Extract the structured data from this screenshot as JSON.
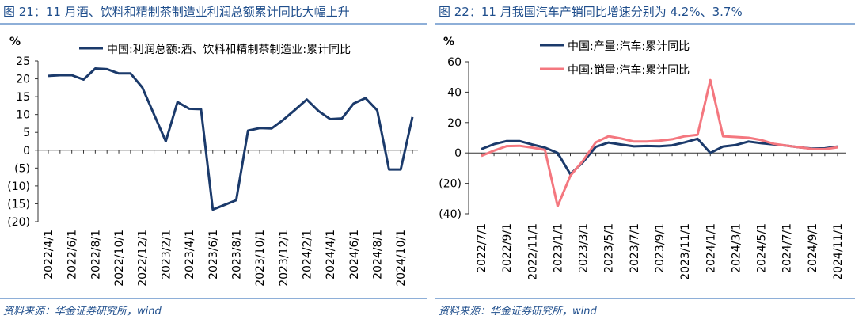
{
  "chart_data": [
    {
      "type": "line",
      "title": "图 21：11 月酒、饮料和精制茶制造业利润总额累计同比大幅上升",
      "y_unit": "%",
      "source": "资料来源：华金证券研究所，wind",
      "categories": [
        "2022/4/1",
        null,
        "2022/6/1",
        null,
        "2022/8/1",
        null,
        "2022/10/1",
        null,
        "2022/12/1",
        null,
        "2023/2/1",
        null,
        "2023/4/1",
        null,
        "2023/6/1",
        null,
        "2023/8/1",
        null,
        "2023/10/1",
        null,
        "2023/12/1",
        null,
        "2024/2/1",
        null,
        "2024/4/1",
        null,
        "2024/6/1",
        null,
        "2024/8/1",
        null,
        "2024/10/1",
        null
      ],
      "series": [
        {
          "name": "中国:利润总额:酒、饮料和精制茶制造业:累计同比",
          "color": "#1b3a6b",
          "values": [
            20.8,
            21.0,
            21.0,
            19.8,
            22.9,
            22.7,
            21.5,
            21.5,
            17.6,
            10.0,
            2.5,
            13.5,
            11.6,
            11.5,
            -16.6,
            -15.3,
            -14.0,
            5.5,
            6.2,
            6.1,
            8.5,
            11.3,
            14.2,
            11.0,
            8.7,
            8.9,
            13.1,
            14.6,
            11.2,
            -5.4,
            -5.4,
            9.3
          ]
        }
      ],
      "ylim": [
        -20,
        25
      ],
      "yticks": [
        {
          "value": -20,
          "label": "(20)"
        },
        {
          "value": -15,
          "label": "(15)"
        },
        {
          "value": -10,
          "label": "(10)"
        },
        {
          "value": -5,
          "label": "(5)"
        },
        0,
        5,
        10,
        15,
        20,
        25
      ]
    },
    {
      "type": "line",
      "title": "图 22：11 月我国汽车产销同比增速分别为 4.2%、3.7%",
      "y_unit": "%",
      "source": "资料来源：华金证券研究所，wind",
      "categories": [
        "2022/7/1",
        null,
        "2022/9/1",
        null,
        "2022/11/1",
        null,
        "2023/1/1",
        null,
        "2023/3/1",
        null,
        "2023/5/1",
        null,
        "2023/7/1",
        null,
        "2023/9/1",
        null,
        "2023/11/1",
        null,
        "2024/1/1",
        null,
        "2024/3/1",
        null,
        "2024/5/1",
        null,
        "2024/7/1",
        null,
        "2024/9/1",
        null,
        "2024/11/1"
      ],
      "series": [
        {
          "name": "中国:产量:汽车:累计同比",
          "color": "#1b3a6b",
          "values": [
            2.5,
            5.8,
            7.8,
            7.8,
            5.5,
            3.5,
            0.0,
            -14.0,
            -6.0,
            4.0,
            6.8,
            5.5,
            4.3,
            4.6,
            4.4,
            5.0,
            7.0,
            9.3,
            0.0,
            4.2,
            5.2,
            7.5,
            6.4,
            5.6,
            4.8,
            3.7,
            2.8,
            3.0,
            4.2
          ]
        },
        {
          "name": "中国:销量:汽车:累计同比",
          "color": "#f4777f",
          "values": [
            -2.0,
            1.5,
            4.5,
            4.7,
            3.5,
            2.0,
            -35.0,
            -15.0,
            -5.0,
            7.0,
            11.0,
            9.5,
            7.5,
            7.5,
            8.0,
            9.0,
            11.0,
            12.0,
            47.9,
            11.0,
            10.5,
            10.0,
            8.5,
            6.0,
            4.8,
            3.7,
            2.6,
            2.5,
            3.7
          ]
        }
      ],
      "ylim": [
        -40,
        60
      ],
      "yticks": [
        {
          "value": -40,
          "label": "(40)"
        },
        {
          "value": -20,
          "label": "(20)"
        },
        0,
        20,
        40,
        60
      ]
    }
  ]
}
